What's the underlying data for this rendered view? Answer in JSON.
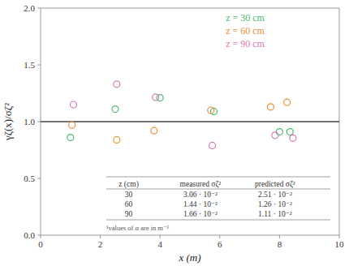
{
  "chart_data": {
    "type": "scatter",
    "xlabel": "x (m)",
    "ylabel": "γζ(x)/σζ²",
    "xlim": [
      0,
      10
    ],
    "ylim": [
      0.0,
      2.0
    ],
    "xticks": [
      0,
      2,
      4,
      6,
      8,
      10
    ],
    "yticks": [
      {
        "value": 0.0,
        "label": "0.0"
      },
      0.5,
      {
        "value": 1.0,
        "label": "1.0"
      },
      1.5,
      {
        "value": 2.0,
        "label": "2.0"
      }
    ],
    "grid": false,
    "legend": "upper right",
    "marker": "circle",
    "reference_lines": [
      1.0
    ],
    "series": [
      {
        "name": "z = 30 cm",
        "color": "#4ab86e",
        "x": [
          1.0,
          2.5,
          4.0,
          5.8,
          8.0,
          8.35
        ],
        "values": [
          0.86,
          1.11,
          1.21,
          1.09,
          0.91,
          0.91
        ]
      },
      {
        "name": "z = 60 cm",
        "color": "#e89030",
        "x": [
          1.05,
          2.55,
          3.8,
          5.7,
          7.7,
          8.25
        ],
        "values": [
          0.97,
          0.84,
          0.92,
          1.1,
          1.13,
          1.17
        ]
      },
      {
        "name": "z = 90 cm",
        "color": "#d878b8",
        "x": [
          1.1,
          2.55,
          3.85,
          5.75,
          7.85,
          8.45
        ],
        "values": [
          1.15,
          1.33,
          1.215,
          0.79,
          0.88,
          0.855
        ]
      }
    ],
    "table": {
      "header": [
        "z (cm)",
        "measured σζ²",
        "predicted σζ²"
      ],
      "rows": [
        [
          "30",
          "3.06 · 10⁻²",
          "2.51 · 10⁻²"
        ],
        [
          "60",
          "1.44 · 10⁻²",
          "1.26 · 10⁻²"
        ],
        [
          "90",
          "1.66 · 10⁻²",
          "1.11 · 10⁻²"
        ]
      ]
    },
    "footnote": "¹values of α are in m⁻¹"
  }
}
